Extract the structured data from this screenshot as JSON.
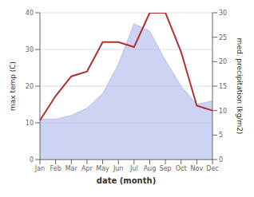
{
  "chart_data": {
    "type": "area",
    "xlabel": "date (month)",
    "ylabel": "max temp (C)",
    "y2label": "med. precipitation (kg/m2)",
    "categories": [
      "Jan",
      "Feb",
      "Mar",
      "Apr",
      "May",
      "Jun",
      "Jul",
      "Aug",
      "Sep",
      "Oct",
      "Nov",
      "Dec"
    ],
    "series": [
      {
        "type": "area",
        "color": "#b8c0ee",
        "values": [
          11.0,
          11.0,
          12.0,
          14.0,
          18.0,
          26.0,
          37.0,
          35.0,
          27.0,
          20.0,
          15.0,
          16.0
        ]
      },
      {
        "type": "line",
        "color": "#b03030",
        "axis": "y2",
        "values": [
          8.0,
          13.0,
          17.0,
          18.0,
          24.0,
          24.0,
          23.0,
          30.0,
          30.0,
          22.0,
          11.0,
          10.0
        ]
      }
    ],
    "ylim": [
      0,
      40
    ],
    "yticks": [
      0,
      10,
      20,
      30,
      40
    ],
    "y2lim": [
      0,
      30
    ],
    "y2ticks": [
      0,
      5,
      10,
      15,
      20,
      25,
      30
    ],
    "grid": true
  }
}
